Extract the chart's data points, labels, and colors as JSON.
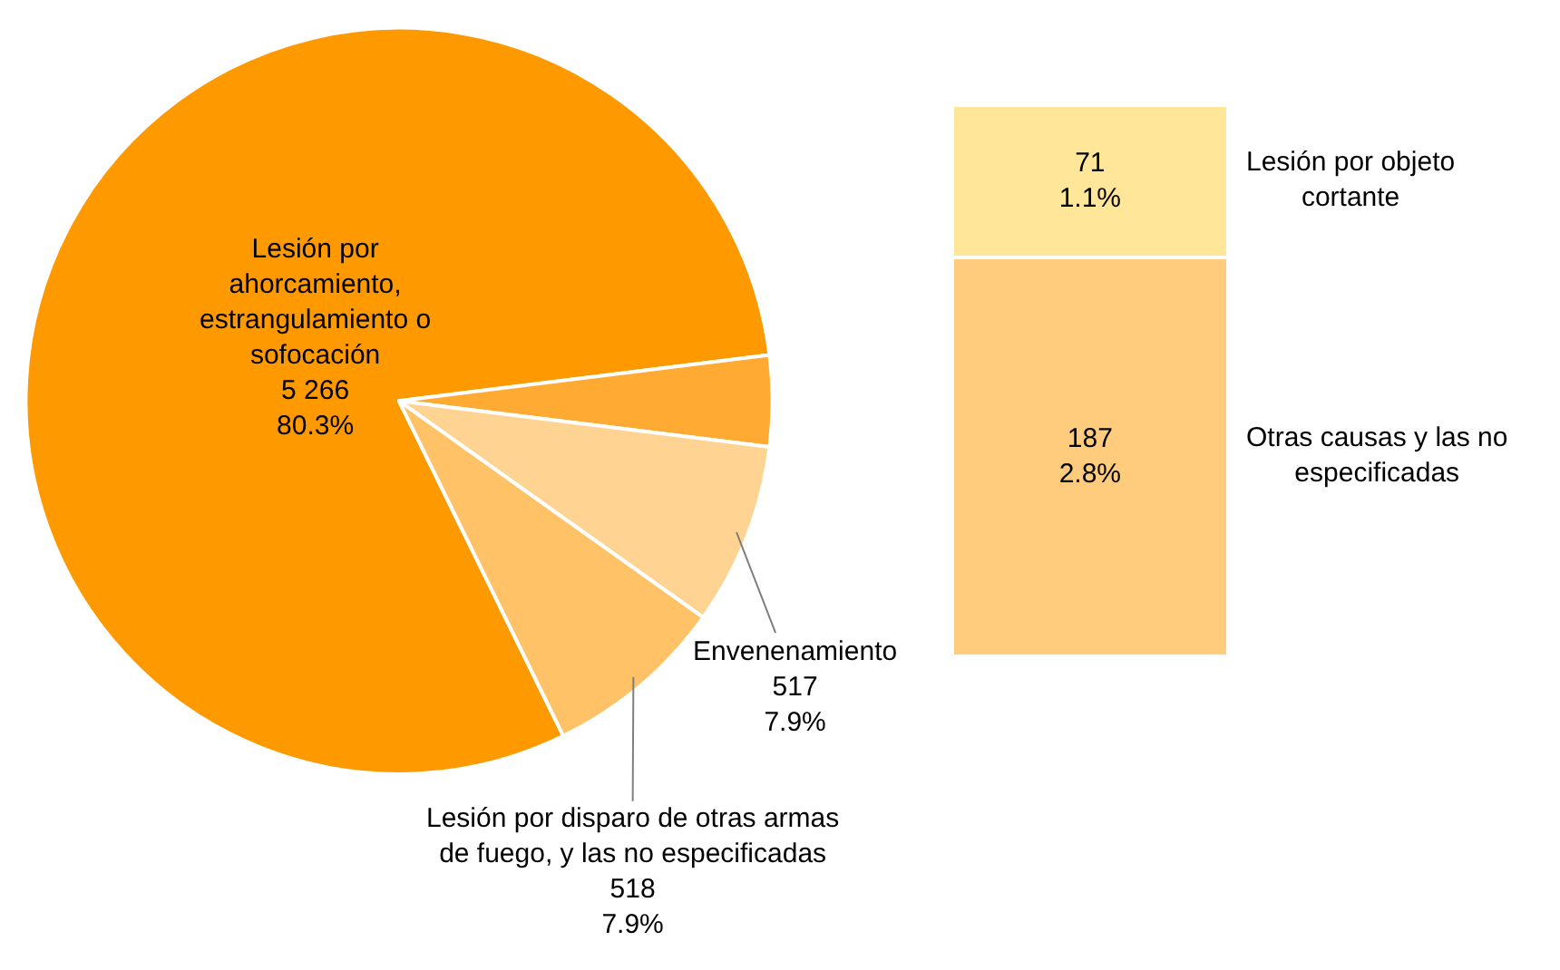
{
  "chart_data": [
    {
      "type": "pie",
      "categories": [
        "Lesión por ahorcamiento, estrangulamiento o sofocación",
        null,
        "Envenenamiento",
        "Lesión por disparo de otras armas de fuego, y las no especificadas"
      ],
      "values": [
        5266,
        258,
        517,
        518
      ],
      "value_labels": [
        "5 266\n80.3%",
        null,
        "517\n7.9%",
        "518\n7.9%"
      ],
      "colors": [
        "#ff9900",
        "#ffab33",
        "#ffd391",
        "#ffc266"
      ]
    },
    {
      "type": "bar",
      "stacked": true,
      "categories": [
        null
      ],
      "series": [
        {
          "name": "Otras causas y las no especificadas",
          "color": "#ffcb7d",
          "values": [
            187
          ],
          "value_labels": [
            "187\n2.8%"
          ]
        },
        {
          "name": "Lesión por objeto cortante",
          "color": "#ffe699",
          "values": [
            71
          ],
          "value_labels": [
            "71\n1.1%"
          ]
        }
      ]
    }
  ]
}
